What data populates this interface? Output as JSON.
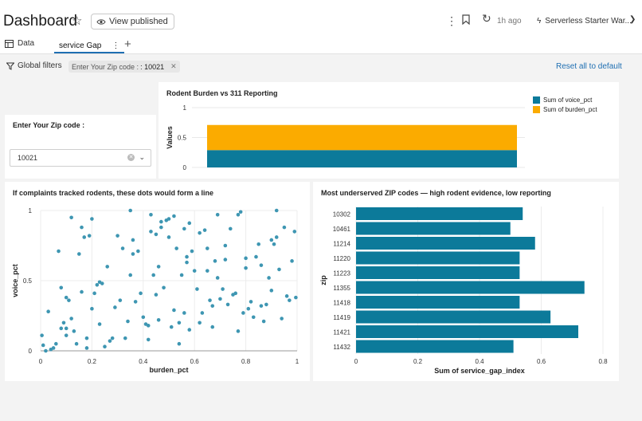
{
  "header": {
    "title": "Dashboard",
    "view_published_label": "View published",
    "last_refreshed": "1h ago",
    "warehouse_label": "Serverless Starter War..."
  },
  "tabs": [
    {
      "label": "Data"
    },
    {
      "label": "service Gap"
    }
  ],
  "filters": {
    "global_filters_label": "Global filters",
    "chip_label": "Enter Your Zip code :",
    "chip_value": ": 10021",
    "reset_label": "Reset all to default"
  },
  "zip_filter": {
    "title": "Enter Your Zip code :",
    "value": "10021"
  },
  "colors": {
    "teal": "#0c7a9a",
    "orange": "#fbab00",
    "dot": "#3e96b2",
    "link": "#1f6fb2"
  },
  "icons": [
    "star-icon",
    "eye-icon",
    "more-vert-icon",
    "bookmark-icon",
    "refresh-icon",
    "warehouse-icon",
    "chevron-down-icon",
    "table-icon",
    "plus-icon",
    "filter-icon",
    "close-icon"
  ],
  "chart_data": [
    {
      "type": "bar",
      "stacked": true,
      "title": "Rodent Burden vs 311 Reporting",
      "ylabel": "Values",
      "ylim": [
        0,
        1
      ],
      "yticks": [
        "0",
        "0.5",
        "1"
      ],
      "series": [
        {
          "name": "Sum of voice_pct",
          "values": [
            0.29
          ]
        },
        {
          "name": "Sum of burden_pct",
          "values": [
            0.42
          ]
        }
      ],
      "legend": "top-right"
    },
    {
      "type": "scatter",
      "title": "If complaints tracked rodents, these dots would form a line",
      "xlabel": "burden_pct",
      "ylabel": "voice_pct",
      "xlim": [
        0,
        1
      ],
      "ylim": [
        0,
        1
      ],
      "xticks": [
        "0",
        "0.2",
        "0.4",
        "0.6",
        "0.8",
        "1"
      ],
      "yticks": [
        "0",
        "0.5",
        "1"
      ],
      "points": [
        [
          0.005,
          0.11
        ],
        [
          0.01,
          0.04
        ],
        [
          0.02,
          0.0
        ],
        [
          0.03,
          0.28
        ],
        [
          0.04,
          0.01
        ],
        [
          0.05,
          0.02
        ],
        [
          0.06,
          0.05
        ],
        [
          0.07,
          0.71
        ],
        [
          0.08,
          0.45
        ],
        [
          0.08,
          0.16
        ],
        [
          0.09,
          0.2
        ],
        [
          0.1,
          0.38
        ],
        [
          0.11,
          0.36
        ],
        [
          0.1,
          0.11
        ],
        [
          0.1,
          0.16
        ],
        [
          0.12,
          0.95
        ],
        [
          0.12,
          0.23
        ],
        [
          0.13,
          0.14
        ],
        [
          0.14,
          0.05
        ],
        [
          0.15,
          0.69
        ],
        [
          0.16,
          0.42
        ],
        [
          0.16,
          0.88
        ],
        [
          0.17,
          0.81
        ],
        [
          0.18,
          0.02
        ],
        [
          0.18,
          0.09
        ],
        [
          0.19,
          0.82
        ],
        [
          0.2,
          0.94
        ],
        [
          0.2,
          0.3
        ],
        [
          0.21,
          0.41
        ],
        [
          0.22,
          0.47
        ],
        [
          0.23,
          0.49
        ],
        [
          0.23,
          0.19
        ],
        [
          0.24,
          0.48
        ],
        [
          0.25,
          0.03
        ],
        [
          0.26,
          0.6
        ],
        [
          0.27,
          0.07
        ],
        [
          0.28,
          0.09
        ],
        [
          0.29,
          0.31
        ],
        [
          0.3,
          0.82
        ],
        [
          0.31,
          0.36
        ],
        [
          0.32,
          0.73
        ],
        [
          0.33,
          0.09
        ],
        [
          0.34,
          0.21
        ],
        [
          0.35,
          1.0
        ],
        [
          0.35,
          0.54
        ],
        [
          0.36,
          0.79
        ],
        [
          0.36,
          0.69
        ],
        [
          0.37,
          0.35
        ],
        [
          0.38,
          0.71
        ],
        [
          0.39,
          0.41
        ],
        [
          0.4,
          0.24
        ],
        [
          0.41,
          0.19
        ],
        [
          0.42,
          0.08
        ],
        [
          0.42,
          0.18
        ],
        [
          0.43,
          0.97
        ],
        [
          0.43,
          0.85
        ],
        [
          0.44,
          0.54
        ],
        [
          0.45,
          0.83
        ],
        [
          0.45,
          0.4
        ],
        [
          0.46,
          0.22
        ],
        [
          0.46,
          0.6
        ],
        [
          0.47,
          0.92
        ],
        [
          0.47,
          0.88
        ],
        [
          0.48,
          0.45
        ],
        [
          0.49,
          0.93
        ],
        [
          0.5,
          0.94
        ],
        [
          0.5,
          0.81
        ],
        [
          0.51,
          0.17
        ],
        [
          0.52,
          0.96
        ],
        [
          0.52,
          0.29
        ],
        [
          0.53,
          0.73
        ],
        [
          0.54,
          0.05
        ],
        [
          0.54,
          0.2
        ],
        [
          0.55,
          0.54
        ],
        [
          0.56,
          0.87
        ],
        [
          0.56,
          0.27
        ],
        [
          0.57,
          0.63
        ],
        [
          0.57,
          0.67
        ],
        [
          0.58,
          0.91
        ],
        [
          0.58,
          0.15
        ],
        [
          0.59,
          0.71
        ],
        [
          0.6,
          0.57
        ],
        [
          0.61,
          0.44
        ],
        [
          0.62,
          0.84
        ],
        [
          0.62,
          0.2
        ],
        [
          0.63,
          0.27
        ],
        [
          0.64,
          0.86
        ],
        [
          0.65,
          0.57
        ],
        [
          0.65,
          0.73
        ],
        [
          0.66,
          0.36
        ],
        [
          0.67,
          0.17
        ],
        [
          0.67,
          0.32
        ],
        [
          0.68,
          0.64
        ],
        [
          0.69,
          0.97
        ],
        [
          0.69,
          0.52
        ],
        [
          0.7,
          0.37
        ],
        [
          0.71,
          0.44
        ],
        [
          0.72,
          0.65
        ],
        [
          0.72,
          0.75
        ],
        [
          0.73,
          0.33
        ],
        [
          0.74,
          0.87
        ],
        [
          0.75,
          0.4
        ],
        [
          0.76,
          0.41
        ],
        [
          0.77,
          0.97
        ],
        [
          0.77,
          0.14
        ],
        [
          0.78,
          0.99
        ],
        [
          0.79,
          0.27
        ],
        [
          0.8,
          0.66
        ],
        [
          0.8,
          0.59
        ],
        [
          0.81,
          0.3
        ],
        [
          0.82,
          0.35
        ],
        [
          0.83,
          0.24
        ],
        [
          0.84,
          0.67
        ],
        [
          0.85,
          0.76
        ],
        [
          0.86,
          0.32
        ],
        [
          0.86,
          0.61
        ],
        [
          0.87,
          0.21
        ],
        [
          0.88,
          0.33
        ],
        [
          0.89,
          0.52
        ],
        [
          0.9,
          0.79
        ],
        [
          0.9,
          0.43
        ],
        [
          0.91,
          0.76
        ],
        [
          0.92,
          0.81
        ],
        [
          0.92,
          1.0
        ],
        [
          0.93,
          0.58
        ],
        [
          0.94,
          0.23
        ],
        [
          0.95,
          0.88
        ],
        [
          0.96,
          0.39
        ],
        [
          0.97,
          0.36
        ],
        [
          0.98,
          0.64
        ],
        [
          0.99,
          0.85
        ],
        [
          0.995,
          0.38
        ]
      ]
    },
    {
      "type": "bar",
      "orientation": "horizontal",
      "title": "Most underserved ZIP codes — high rodent evidence, low reporting",
      "xlabel": "Sum of service_gap_index",
      "ylabel": "zip",
      "xlim": [
        0,
        0.8
      ],
      "xticks": [
        "0",
        "0.2",
        "0.4",
        "0.6",
        "0.8"
      ],
      "categories": [
        "10302",
        "10461",
        "11214",
        "11220",
        "11223",
        "11355",
        "11418",
        "11419",
        "11421",
        "11432"
      ],
      "values": [
        0.54,
        0.5,
        0.58,
        0.53,
        0.53,
        0.74,
        0.53,
        0.63,
        0.72,
        0.51
      ]
    }
  ]
}
